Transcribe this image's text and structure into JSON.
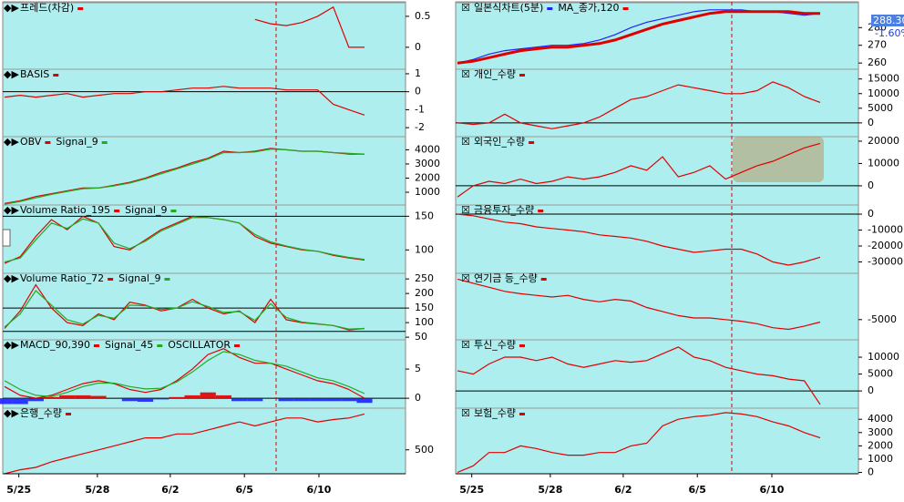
{
  "chart_data": [
    {
      "type": "line",
      "series": [
        {
          "name": "프레드(차감)",
          "color": "#e00000",
          "values": [
            null,
            null,
            null,
            null,
            null,
            null,
            null,
            null,
            null,
            null,
            null,
            null,
            null,
            null,
            null,
            null,
            0.45,
            0.38,
            0.35,
            0.4,
            0.5,
            0.65,
            0,
            0
          ]
        }
      ],
      "ylim": [
        -0.34,
        0.69
      ],
      "yticks": [
        0,
        0.5
      ]
    },
    {
      "type": "line",
      "series": [
        {
          "name": "BASIS",
          "color": "#e00000",
          "values": [
            -0.3,
            -0.2,
            -0.3,
            -0.2,
            -0.1,
            -0.3,
            -0.2,
            -0.1,
            -0.1,
            0,
            0,
            0.1,
            0.2,
            0.2,
            0.3,
            0.2,
            0.2,
            0.2,
            0.1,
            0.1,
            0.1,
            -0.7,
            -1,
            -1.3
          ]
        }
      ],
      "ylim": [
        -2.5,
        1.15
      ],
      "yticks": [
        -2,
        -1,
        0,
        1
      ],
      "hlines": [
        0
      ]
    },
    {
      "type": "line",
      "series": [
        {
          "name": "OBV",
          "color": "#e00000",
          "values": [
            200,
            400,
            700,
            900,
            1100,
            1300,
            1300,
            1500,
            1700,
            2000,
            2400,
            2700,
            3100,
            3400,
            3900,
            3800,
            3900,
            4100,
            4000,
            3900,
            3900,
            3800,
            3700,
            3700
          ]
        },
        {
          "name": "Signal_9",
          "color": "#22aa22",
          "values": [
            150,
            350,
            600,
            850,
            1050,
            1250,
            1300,
            1450,
            1650,
            1950,
            2300,
            2650,
            3000,
            3350,
            3800,
            3800,
            3850,
            4050,
            4000,
            3900,
            3900,
            3800,
            3750,
            3700
          ]
        }
      ],
      "ylim": [
        100,
        4800
      ],
      "yticks": [
        1000,
        2000,
        3000,
        4000
      ]
    },
    {
      "type": "line",
      "series": [
        {
          "name": "Volume Ratio_195",
          "color": "#e00000",
          "values": [
            80,
            90,
            120,
            145,
            130,
            150,
            140,
            105,
            100,
            115,
            130,
            140,
            150,
            148,
            145,
            140,
            120,
            110,
            105,
            100,
            98,
            92,
            88,
            85
          ]
        },
        {
          "name": "Signal_9",
          "color": "#22aa22",
          "values": [
            82,
            88,
            115,
            140,
            132,
            146,
            140,
            110,
            102,
            113,
            128,
            138,
            148,
            148,
            145,
            140,
            123,
            112,
            106,
            101,
            98,
            93,
            89,
            86
          ]
        }
      ],
      "ylim": [
        68,
        164
      ],
      "yticks": [
        100,
        150
      ],
      "hlines": [
        150
      ]
    },
    {
      "type": "line",
      "series": [
        {
          "name": "Volume Ratio_72",
          "color": "#e00000",
          "values": [
            80,
            140,
            230,
            150,
            100,
            90,
            130,
            110,
            170,
            160,
            140,
            150,
            180,
            150,
            130,
            140,
            100,
            180,
            110,
            100,
            95,
            90,
            75,
            80
          ]
        },
        {
          "name": "Signal_9",
          "color": "#22aa22",
          "values": [
            85,
            130,
            210,
            160,
            110,
            95,
            125,
            115,
            160,
            158,
            145,
            150,
            172,
            155,
            135,
            138,
            108,
            165,
            118,
            102,
            96,
            90,
            78,
            80
          ]
        }
      ],
      "ylim": [
        41,
        263
      ],
      "yticks": [
        50,
        100,
        150,
        200,
        250
      ],
      "hlines": [
        150,
        70
      ]
    },
    {
      "type": "macd",
      "series": [
        {
          "name": "MACD_90,390",
          "color": "#e00000",
          "values": [
            2,
            0.5,
            0,
            0.5,
            1.5,
            2.5,
            3,
            2.5,
            1.5,
            1,
            1.5,
            3,
            5,
            7.5,
            8.5,
            7,
            6,
            6,
            5,
            4,
            3,
            2.5,
            1.5,
            0
          ]
        },
        {
          "name": "Signal_45",
          "color": "#22aa22",
          "values": [
            3,
            1.5,
            0.5,
            0.3,
            1,
            2,
            2.6,
            2.6,
            2,
            1.6,
            1.7,
            2.8,
            4.5,
            6.5,
            8,
            7.5,
            6.5,
            6,
            5.5,
            4.5,
            3.5,
            3,
            2,
            0.8
          ]
        },
        {
          "name": "OSCILLATOR",
          "color": "#e00000",
          "neg_color": "#2020ff",
          "values": [
            -1,
            -1,
            -0.5,
            0.2,
            0.5,
            0.5,
            0.4,
            -0.1,
            -0.5,
            -0.6,
            -0.2,
            0.2,
            0.5,
            1,
            0.5,
            -0.5,
            -0.5,
            0,
            -0.5,
            -0.5,
            -0.5,
            -0.5,
            -0.5,
            -0.8
          ]
        }
      ],
      "ylim": [
        -1.7,
        9.7
      ],
      "yticks": [
        0,
        5
      ],
      "hlines": [
        0
      ]
    },
    {
      "type": "line",
      "series": [
        {
          "name": "은행_수량",
          "color": "#e00000",
          "values": [
            200,
            250,
            280,
            350,
            400,
            450,
            500,
            550,
            600,
            650,
            650,
            700,
            700,
            750,
            800,
            850,
            800,
            850,
            900,
            900,
            850,
            880,
            900,
            950
          ]
        }
      ],
      "ylim": [
        200,
        1000
      ],
      "yticks": [
        500
      ]
    },
    {
      "type": "line",
      "series": [
        {
          "name": "일본식차트(5분)",
          "color": "#2020ff",
          "values": [
            260,
            262,
            265,
            267,
            268,
            269,
            270,
            270,
            271,
            273,
            276,
            280,
            283,
            285,
            287,
            289,
            290,
            290,
            290,
            289,
            289,
            288,
            287,
            288
          ]
        },
        {
          "name": "MA_종가,120",
          "color": "#e00000",
          "width": 3,
          "values": [
            260,
            261,
            263,
            265,
            267,
            268,
            269,
            269,
            270,
            271,
            273,
            276,
            279,
            282,
            284,
            286,
            288,
            289,
            289,
            289,
            289,
            289,
            288,
            288
          ]
        }
      ],
      "ylim": [
        257,
        293
      ],
      "yticks": [
        260,
        270,
        280
      ],
      "last_label": "288.30",
      "change_label": "-1.60%"
    },
    {
      "type": "line",
      "series": [
        {
          "name": "개인_수량",
          "color": "#e00000",
          "values": [
            0,
            -500,
            0,
            3000,
            0,
            -1000,
            -2000,
            -1000,
            0,
            2000,
            5000,
            8000,
            9000,
            11000,
            13000,
            12000,
            11000,
            10000,
            10000,
            11000,
            14000,
            12000,
            9000,
            7000
          ]
        }
      ],
      "ylim": [
        -4700,
        17700
      ],
      "yticks": [
        0,
        5000,
        10000,
        15000
      ],
      "hlines": [
        0
      ]
    },
    {
      "type": "line",
      "series": [
        {
          "name": "외국인_수량",
          "color": "#e00000",
          "values": [
            -5000,
            0,
            2000,
            1000,
            3000,
            1000,
            2000,
            4000,
            3000,
            4000,
            6000,
            9000,
            7000,
            13000,
            4000,
            6000,
            9000,
            3000,
            6000,
            9000,
            11000,
            14000,
            17000,
            19000
          ]
        }
      ],
      "ylim": [
        -8600,
        21200
      ],
      "yticks": [
        0,
        10000,
        20000
      ],
      "hlines": [
        0
      ]
    },
    {
      "type": "line",
      "series": [
        {
          "name": "금융투자_수량",
          "color": "#e00000",
          "values": [
            0,
            -1000,
            -3000,
            -5000,
            -6000,
            -8000,
            -9000,
            -10000,
            -11000,
            -13000,
            -14000,
            -15000,
            -17000,
            -20000,
            -22000,
            -24000,
            -23000,
            -22000,
            -22000,
            -25000,
            -30000,
            -32000,
            -30000,
            -27000
          ]
        }
      ],
      "ylim": [
        -36000,
        4600
      ],
      "yticks": [
        -30000,
        -20000,
        -10000,
        0
      ],
      "hlines": [
        0
      ]
    },
    {
      "type": "line",
      "series": [
        {
          "name": "연기금 등_수량",
          "color": "#e00000",
          "values": [
            0,
            -500,
            -1000,
            -1500,
            -1800,
            -2000,
            -2200,
            -2000,
            -2500,
            -2800,
            -2500,
            -2700,
            -3500,
            -4000,
            -4500,
            -4800,
            -4800,
            -5000,
            -5200,
            -5500,
            -6000,
            -6200,
            -5800,
            -5300
          ]
        }
      ],
      "ylim": [
        -7500,
        500
      ],
      "yticks": [
        -5000
      ]
    },
    {
      "type": "line",
      "series": [
        {
          "name": "투신_수량",
          "color": "#e00000",
          "values": [
            6000,
            5000,
            8000,
            10000,
            10000,
            9000,
            10000,
            8000,
            7000,
            8000,
            9000,
            8500,
            9000,
            11000,
            13000,
            10000,
            9000,
            7000,
            6000,
            5000,
            4500,
            3500,
            3000,
            -4000
          ]
        }
      ],
      "ylim": [
        -5100,
        14600
      ],
      "yticks": [
        0,
        5000,
        10000
      ],
      "hlines": [
        0
      ]
    },
    {
      "type": "line",
      "series": [
        {
          "name": "보험_수량",
          "color": "#e00000",
          "values": [
            0,
            500,
            1500,
            1500,
            2000,
            1800,
            1500,
            1300,
            1300,
            1500,
            1500,
            2000,
            2200,
            3500,
            4000,
            4200,
            4300,
            4500,
            4400,
            4200,
            3800,
            3500,
            3000,
            2600
          ]
        }
      ],
      "ylim": [
        -100,
        4700
      ],
      "yticks": [
        0,
        1000,
        2000,
        3000,
        4000
      ]
    }
  ],
  "x_axis_labels": [
    "5/25",
    "5/28",
    "6/2",
    "6/5",
    "6/10"
  ]
}
